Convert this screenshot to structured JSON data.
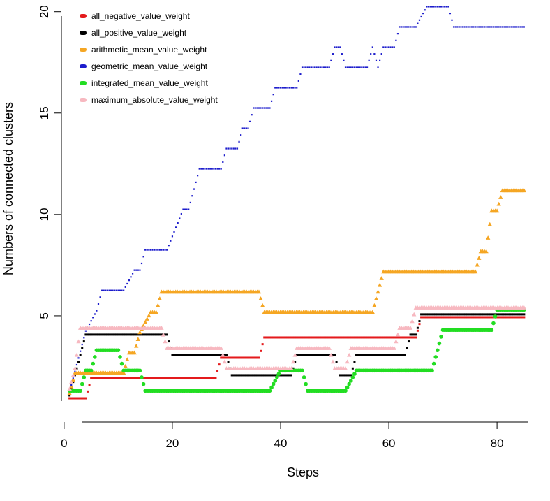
{
  "chart_data": {
    "type": "line",
    "title": "",
    "xlabel": "Steps",
    "ylabel": "Numbers of connected clusters",
    "xlim": [
      1,
      85
    ],
    "ylim": [
      1,
      20
    ],
    "xticks": [
      0,
      20,
      40,
      60,
      80
    ],
    "yticks": [
      5,
      10,
      15,
      20
    ],
    "legend": {
      "position": "top-left"
    },
    "series": [
      {
        "name": "all_negative_value_weight",
        "color": "#e41a1c",
        "marker": "square",
        "segments": [
          [
            1,
            1
          ],
          [
            4,
            1
          ],
          [
            5,
            2
          ],
          [
            28,
            2
          ],
          [
            29,
            3
          ],
          [
            36,
            3
          ],
          [
            37,
            4
          ],
          [
            62,
            4
          ],
          [
            65,
            4
          ],
          [
            66,
            5
          ],
          [
            85,
            5
          ]
        ]
      },
      {
        "name": "all_positive_value_weight",
        "color": "#000000",
        "marker": "square",
        "segments": [
          [
            1,
            1
          ],
          [
            2,
            2
          ],
          [
            3,
            3
          ],
          [
            4,
            4
          ],
          [
            19,
            4
          ],
          [
            20,
            3
          ],
          [
            30,
            3
          ],
          [
            31,
            2
          ],
          [
            39,
            2
          ],
          [
            40,
            2
          ],
          [
            42,
            2
          ],
          [
            43,
            3
          ],
          [
            50,
            3
          ],
          [
            51,
            2
          ],
          [
            52,
            2
          ],
          [
            53,
            2
          ],
          [
            54,
            3
          ],
          [
            63,
            3
          ],
          [
            64,
            4
          ],
          [
            65,
            4
          ],
          [
            66,
            5
          ],
          [
            85,
            5
          ]
        ]
      },
      {
        "name": "arithmetic_mean_value_weight",
        "color": "#f5a623",
        "marker": "triangle",
        "segments": [
          [
            1,
            1
          ],
          [
            2,
            2
          ],
          [
            11,
            2
          ],
          [
            12,
            3
          ],
          [
            13,
            3
          ],
          [
            14,
            4
          ],
          [
            16,
            5
          ],
          [
            17,
            5
          ],
          [
            18,
            6
          ],
          [
            36,
            6
          ],
          [
            37,
            5
          ],
          [
            57,
            5
          ],
          [
            58,
            6
          ],
          [
            59,
            7
          ],
          [
            76,
            7
          ],
          [
            77,
            8
          ],
          [
            78,
            8
          ],
          [
            79,
            10
          ],
          [
            80,
            10
          ],
          [
            81,
            11
          ],
          [
            85,
            11
          ]
        ]
      },
      {
        "name": "geometric_mean_value_weight",
        "color": "#1c1ccc",
        "marker": "square",
        "segments": [
          [
            1,
            1
          ],
          [
            2,
            2
          ],
          [
            3,
            3
          ],
          [
            4,
            4
          ],
          [
            6,
            5
          ],
          [
            7,
            6
          ],
          [
            11,
            6
          ],
          [
            13,
            7
          ],
          [
            14,
            7
          ],
          [
            15,
            8
          ],
          [
            19,
            8
          ],
          [
            22,
            10
          ],
          [
            23,
            10
          ],
          [
            25,
            12
          ],
          [
            29,
            12
          ],
          [
            30,
            13
          ],
          [
            32,
            13
          ],
          [
            33,
            14
          ],
          [
            34,
            14
          ],
          [
            35,
            15
          ],
          [
            38,
            15
          ],
          [
            39,
            16
          ],
          [
            43,
            16
          ],
          [
            44,
            17
          ],
          [
            49,
            17
          ],
          [
            50,
            18
          ],
          [
            51,
            18
          ],
          [
            52,
            17
          ],
          [
            56,
            17
          ],
          [
            57,
            18
          ],
          [
            58,
            17
          ],
          [
            59,
            18
          ],
          [
            61,
            18
          ],
          [
            62,
            19
          ],
          [
            65,
            19
          ],
          [
            67,
            20
          ],
          [
            71,
            20
          ],
          [
            72,
            19
          ],
          [
            85,
            19
          ]
        ]
      },
      {
        "name": "integrated_mean_value_weight",
        "color": "#22dd22",
        "marker": "circle",
        "segments": [
          [
            1,
            1
          ],
          [
            3,
            1
          ],
          [
            4,
            2
          ],
          [
            5,
            2
          ],
          [
            6,
            3
          ],
          [
            10,
            3
          ],
          [
            11,
            2
          ],
          [
            13,
            2
          ],
          [
            14,
            2
          ],
          [
            15,
            1
          ],
          [
            38,
            1
          ],
          [
            40,
            2
          ],
          [
            43,
            2
          ],
          [
            44,
            2
          ],
          [
            45,
            1
          ],
          [
            52,
            1
          ],
          [
            54,
            2
          ],
          [
            68,
            2
          ],
          [
            69,
            3
          ],
          [
            70,
            4
          ],
          [
            79,
            4
          ],
          [
            80,
            5
          ],
          [
            85,
            5
          ]
        ]
      },
      {
        "name": "maximum_absolute_value_weight",
        "color": "#f7b8c0",
        "marker": "triangle",
        "segments": [
          [
            1,
            1
          ],
          [
            2,
            2
          ],
          [
            3,
            4
          ],
          [
            17,
            4
          ],
          [
            18,
            4
          ],
          [
            19,
            3
          ],
          [
            29,
            3
          ],
          [
            30,
            2
          ],
          [
            42,
            2
          ],
          [
            43,
            3
          ],
          [
            49,
            3
          ],
          [
            50,
            2
          ],
          [
            52,
            2
          ],
          [
            53,
            3
          ],
          [
            61,
            3
          ],
          [
            62,
            4
          ],
          [
            64,
            4
          ],
          [
            65,
            5
          ],
          [
            85,
            5
          ]
        ]
      }
    ]
  }
}
